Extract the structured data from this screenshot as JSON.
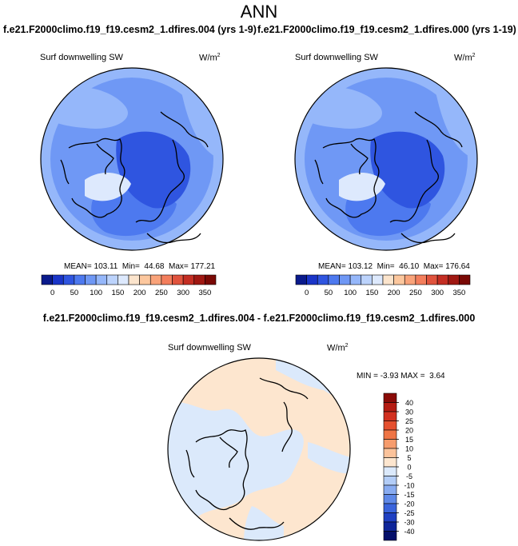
{
  "page": {
    "title": "ANN",
    "subtitle_left": "f.e21.F2000climo.f19_f19.cesm2_1.dfires.004 (yrs 1-9)",
    "subtitle_right": "f.e21.F2000climo.f19_f19.cesm2_1.dfires.000 (yrs 1-19)",
    "diff_title": "f.e21.F2000climo.f19_f19.cesm2_1.dfires.004 - f.e21.F2000climo.f19_f19.cesm2_1.dfires.000"
  },
  "chart_data": [
    {
      "type": "heatmap",
      "projection": "north polar stereographic",
      "title": "Surf downwelling SW",
      "units": "W/m",
      "units_exponent": "2",
      "stats_text": "MEAN= 103.11  Min=  44.68  Max= 177.21",
      "mean": 103.11,
      "min": 44.68,
      "max": 177.21,
      "colorbar": {
        "orientation": "horizontal",
        "levels": [
          0,
          25,
          50,
          75,
          100,
          125,
          150,
          175,
          200,
          225,
          250,
          275,
          300,
          325,
          350
        ],
        "tick_labels": [
          "0",
          "50",
          "100",
          "150",
          "200",
          "250",
          "300",
          "350"
        ],
        "colors": [
          "#0a1a8c",
          "#1a35c8",
          "#2f55e0",
          "#4d79ef",
          "#6f98f5",
          "#95b7fa",
          "#bcd3fc",
          "#dde9fd",
          "#fbe4cc",
          "#fcc79e",
          "#f9a37a",
          "#f37e5c",
          "#e0533d",
          "#c42e23",
          "#a01812",
          "#7a0905"
        ]
      }
    },
    {
      "type": "heatmap",
      "projection": "north polar stereographic",
      "title": "Surf downwelling SW",
      "units": "W/m",
      "units_exponent": "2",
      "stats_text": "MEAN= 103.12  Min=  46.10  Max= 176.64",
      "mean": 103.12,
      "min": 46.1,
      "max": 176.64,
      "colorbar": {
        "orientation": "horizontal",
        "levels": [
          0,
          25,
          50,
          75,
          100,
          125,
          150,
          175,
          200,
          225,
          250,
          275,
          300,
          325,
          350
        ],
        "tick_labels": [
          "0",
          "50",
          "100",
          "150",
          "200",
          "250",
          "300",
          "350"
        ],
        "colors": [
          "#0a1a8c",
          "#1a35c8",
          "#2f55e0",
          "#4d79ef",
          "#6f98f5",
          "#95b7fa",
          "#bcd3fc",
          "#dde9fd",
          "#fbe4cc",
          "#fcc79e",
          "#f9a37a",
          "#f37e5c",
          "#e0533d",
          "#c42e23",
          "#a01812",
          "#7a0905"
        ]
      }
    },
    {
      "type": "heatmap",
      "projection": "north polar stereographic",
      "title": "Surf downwelling SW",
      "units": "W/m",
      "units_exponent": "2",
      "stats_text": "MIN = -3.93 MAX =  3.64",
      "min": -3.93,
      "max": 3.64,
      "colorbar": {
        "orientation": "vertical",
        "levels": [
          -40,
          -30,
          -25,
          -20,
          -15,
          -10,
          -5,
          0,
          5,
          10,
          15,
          20,
          25,
          30,
          40
        ],
        "tick_labels": [
          "40",
          "30",
          "25",
          "20",
          "15",
          "10",
          "5",
          "0",
          "-5",
          "-10",
          "-15",
          "-20",
          "-25",
          "-30",
          "-40"
        ],
        "colors_top_to_bottom": [
          "#8a0b07",
          "#b51c12",
          "#d2301f",
          "#e5502f",
          "#ef7545",
          "#f69c6d",
          "#fbc39b",
          "#fde6cf",
          "#dbe9fb",
          "#b3cdf7",
          "#89acf1",
          "#5f89e8",
          "#3a64dc",
          "#1f40c2",
          "#0f269a",
          "#040f6a"
        ]
      }
    }
  ]
}
